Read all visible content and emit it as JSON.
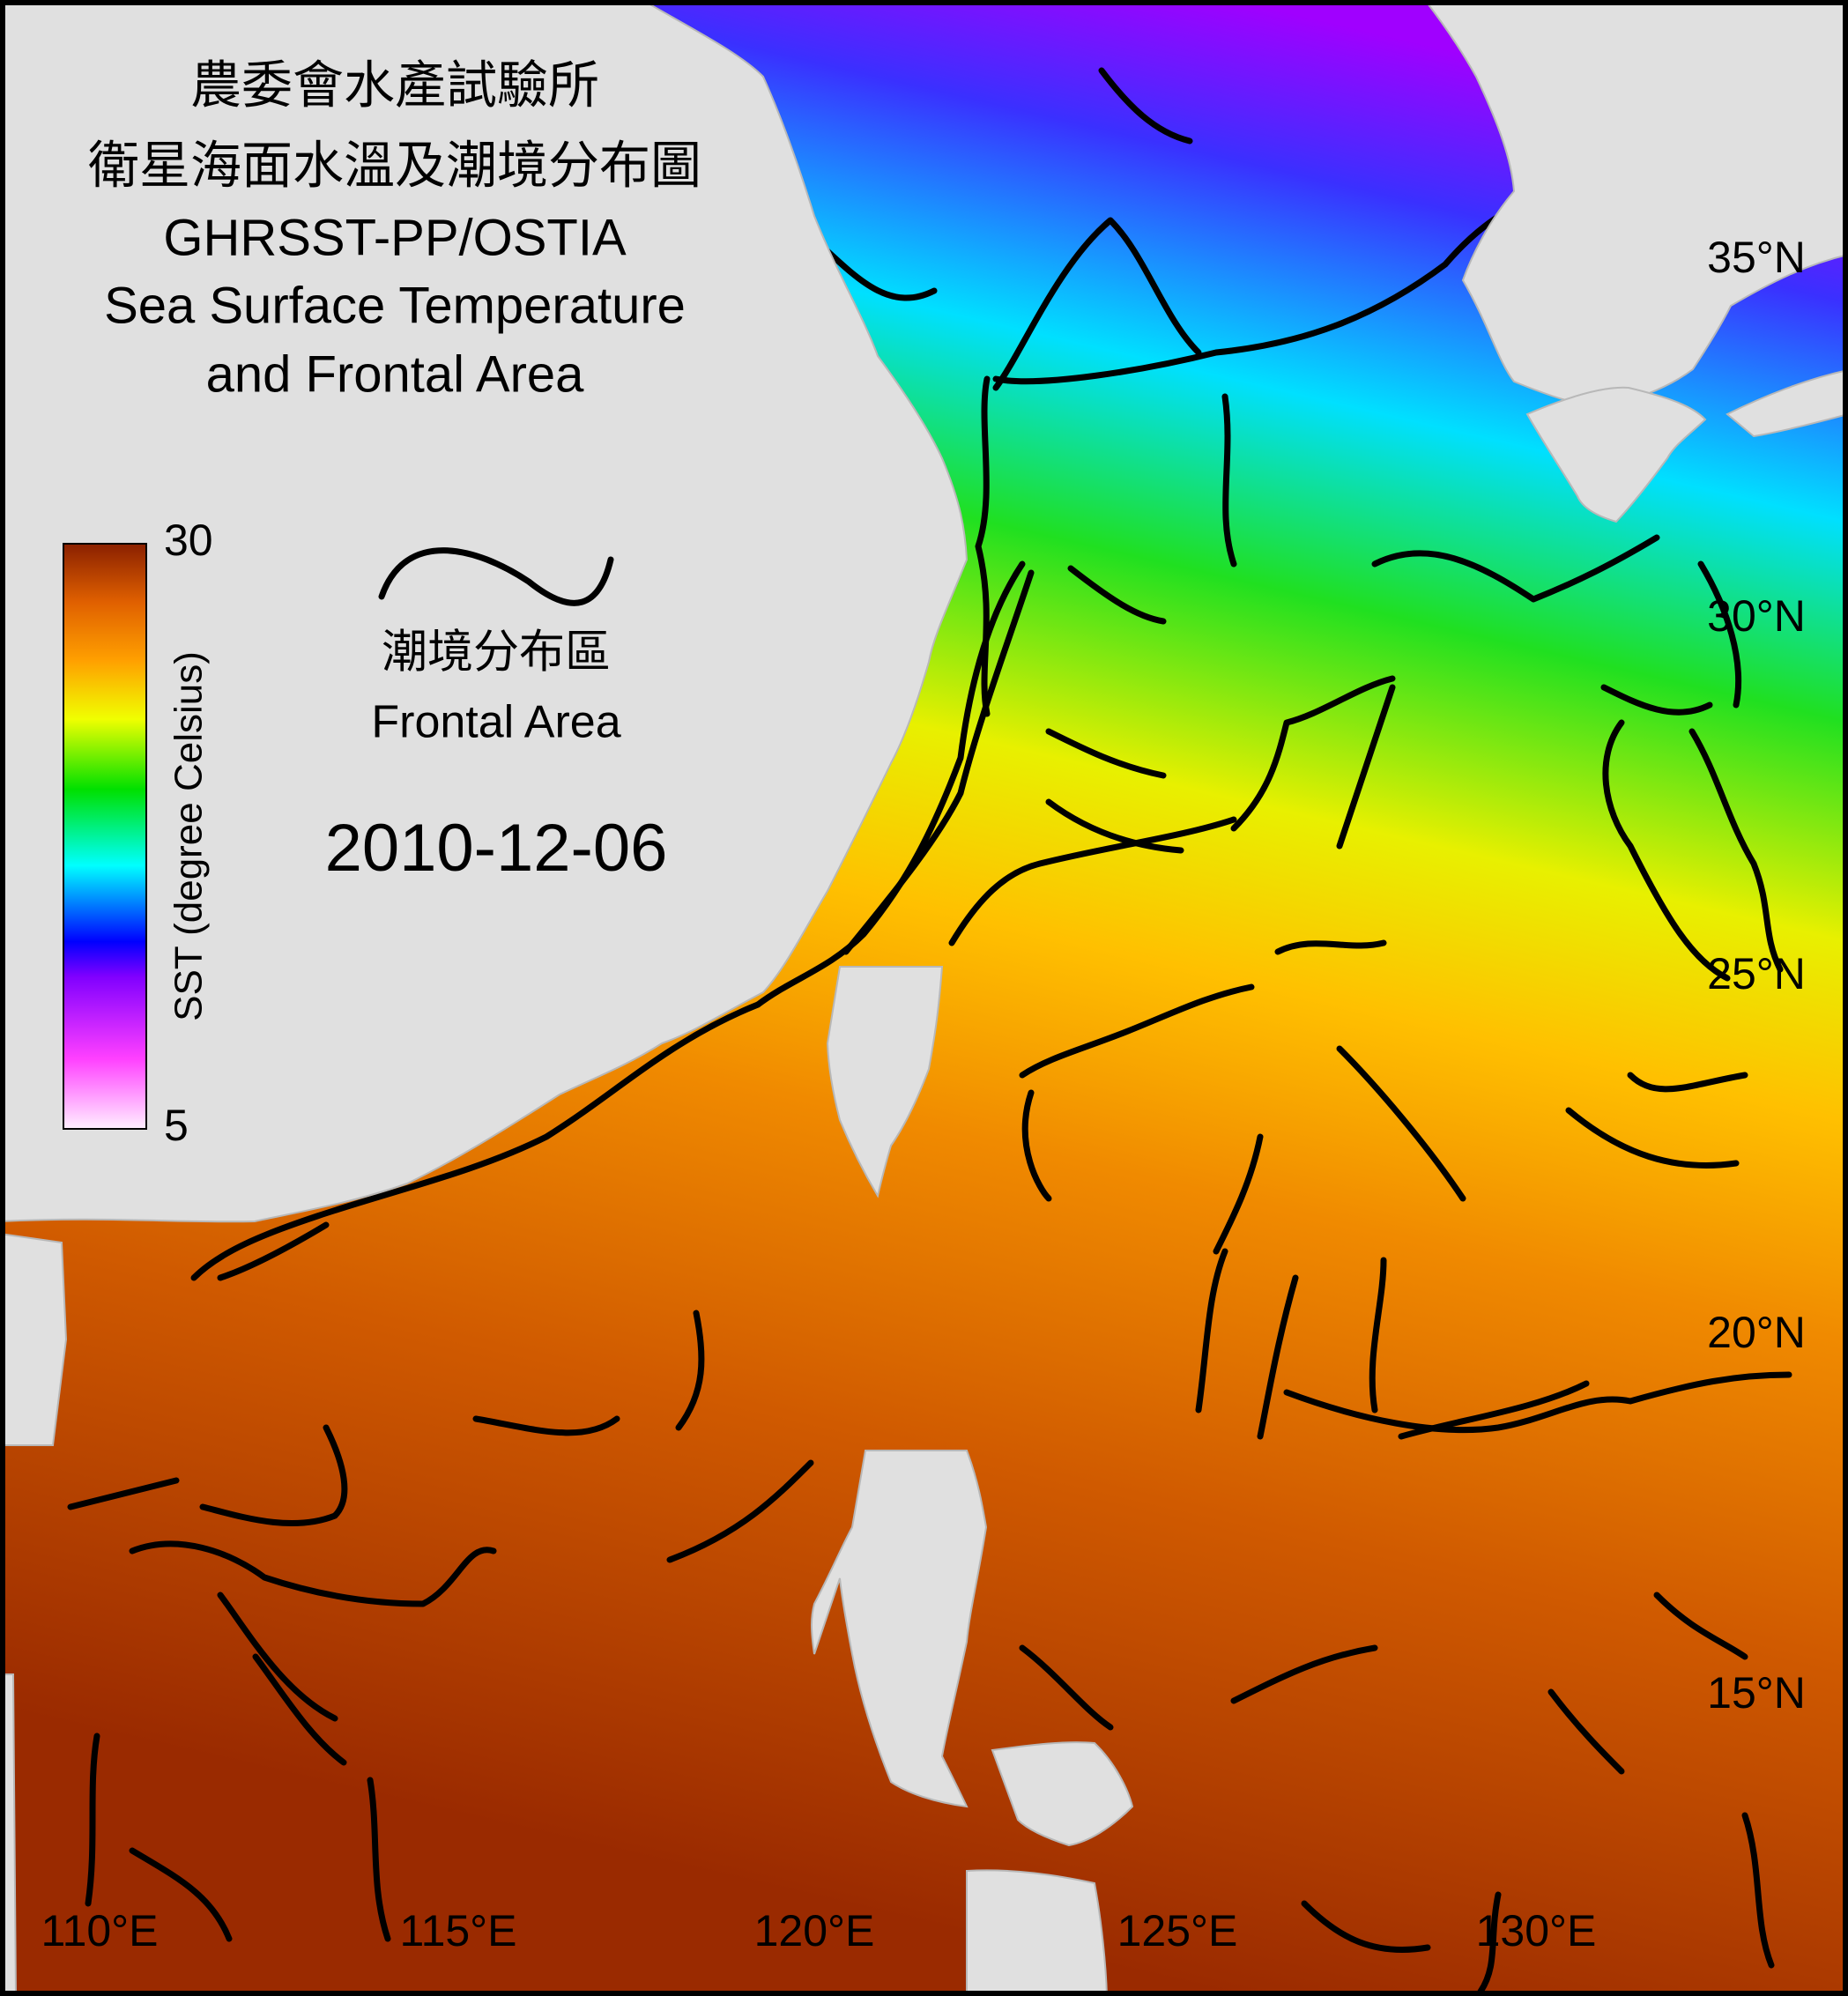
{
  "title": {
    "lines": [
      "農委會水產試驗所",
      "衛星海面水溫及潮境分布圖",
      "GHRSST-PP/OSTIA",
      "Sea Surface Temperature",
      "and Frontal Area"
    ]
  },
  "colorbar": {
    "label": "SST (degree Celsius)",
    "min": 5,
    "max": 30,
    "ticks": [
      5,
      30
    ]
  },
  "frontal_legend": {
    "label_zh": "潮境分布區",
    "label_en": "Frontal Area"
  },
  "date": "2010-12-06",
  "latitude_labels": [
    "35°N",
    "30°N",
    "25°N",
    "20°N",
    "15°N"
  ],
  "longitude_labels": [
    "110°E",
    "115°E",
    "120°E",
    "125°E",
    "130°E"
  ]
}
